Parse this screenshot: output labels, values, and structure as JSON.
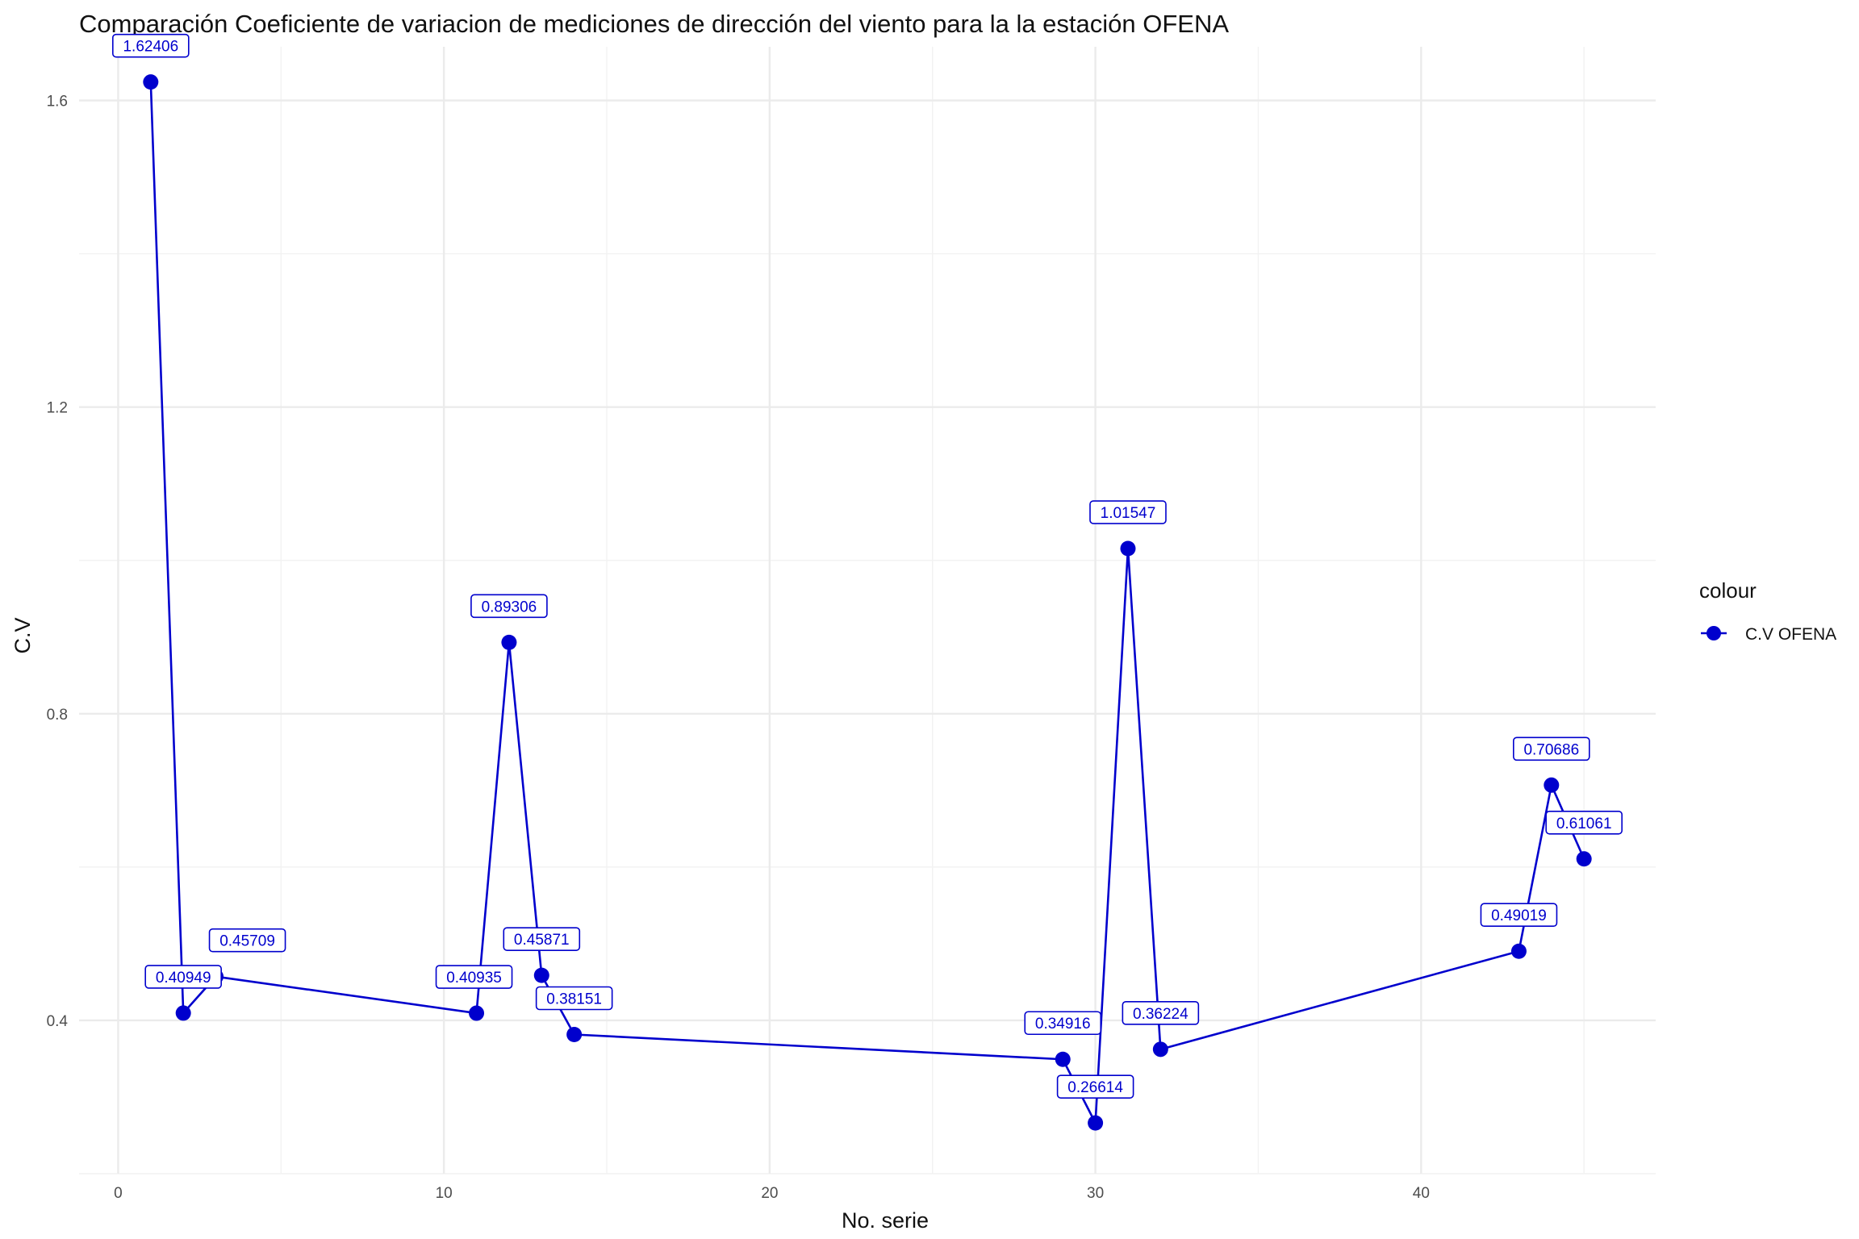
{
  "chart_data": {
    "type": "line",
    "title": "Comparación Coeficiente de variacion de mediciones de dirección del viento para la la estación OFENA",
    "xlabel": "No. serie",
    "ylabel": "C.V",
    "xlim": [
      -1.2,
      47.2
    ],
    "ylim": [
      0.2,
      1.67
    ],
    "x_ticks": [
      0,
      10,
      20,
      30,
      40
    ],
    "y_ticks": [
      0.4,
      0.8,
      1.2,
      1.6
    ],
    "grid": true,
    "legend": {
      "title": "colour",
      "position": "right"
    },
    "series": [
      {
        "name": "C.V OFENA",
        "color": "#0000CD",
        "x": [
          1,
          2,
          3,
          11,
          12,
          13,
          14,
          29,
          30,
          31,
          32,
          43,
          44,
          45
        ],
        "values": [
          1.62406,
          0.40949,
          0.45709,
          0.40935,
          0.89306,
          0.45871,
          0.38151,
          0.34916,
          0.26614,
          1.01547,
          0.36224,
          0.49019,
          0.70686,
          0.61061
        ],
        "labels": [
          "1.62406",
          "0.40949",
          "0.45709",
          "0.40935",
          "0.89306",
          "0.45871",
          "0.38151",
          "0.34916",
          "0.26614",
          "1.01547",
          "0.36224",
          "0.49019",
          "0.70686",
          "0.61061"
        ]
      }
    ]
  }
}
